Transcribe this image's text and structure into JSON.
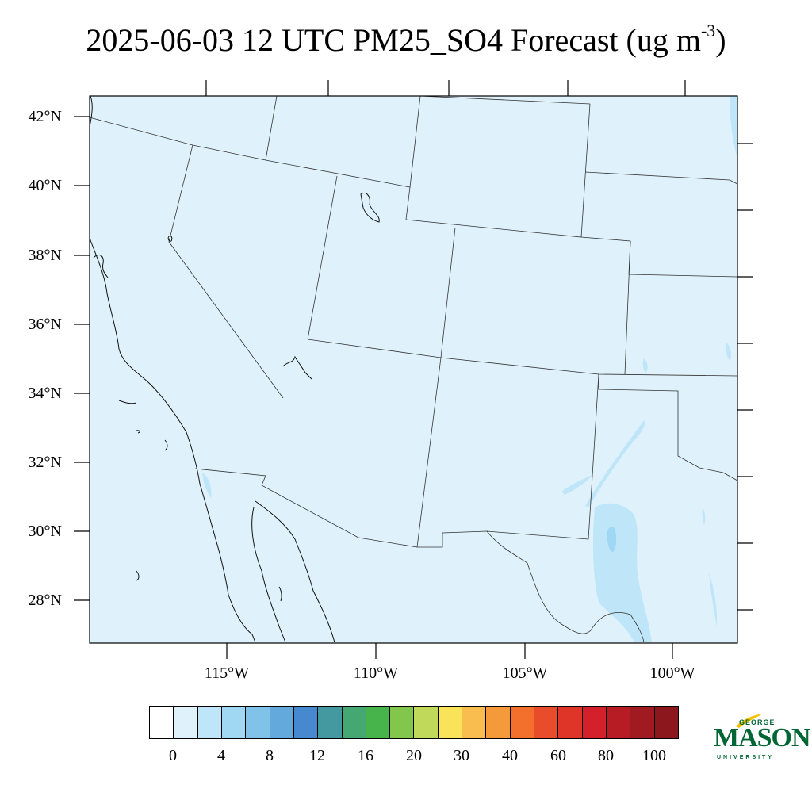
{
  "title": {
    "main": "2025-06-03 12 UTC PM25_SO4 Forecast (ug m",
    "exponent": "-3",
    "close": ")"
  },
  "map": {
    "region": "Southwestern United States",
    "field": "PM25_SO4",
    "background_color": "#dff2fb",
    "lat_ticks": [
      "42°N",
      "40°N",
      "38°N",
      "36°N",
      "34°N",
      "32°N",
      "30°N",
      "28°N"
    ],
    "lon_ticks": [
      "115°W",
      "110°W",
      "105°W",
      "100°W"
    ]
  },
  "colorbar": {
    "colors": [
      "#ffffff",
      "#dff2fb",
      "#bfe6f8",
      "#a0d8f4",
      "#80c2e8",
      "#64a9dc",
      "#4689cf",
      "#4499a0",
      "#45a872",
      "#46b44a",
      "#82c64c",
      "#c1d95a",
      "#f9e459",
      "#f8bd4e",
      "#f59a3a",
      "#f2702c",
      "#e84c2a",
      "#df3528",
      "#d3202a",
      "#b71c25",
      "#a01a22",
      "#8c171c"
    ],
    "labels": [
      "0",
      "4",
      "8",
      "12",
      "16",
      "20",
      "30",
      "40",
      "60",
      "80",
      "100"
    ]
  },
  "logo": {
    "line1": "GEORGE",
    "line2": "MASON",
    "line3": "UNIVERSITY",
    "color": "#006633",
    "accent": "#f2c200"
  }
}
